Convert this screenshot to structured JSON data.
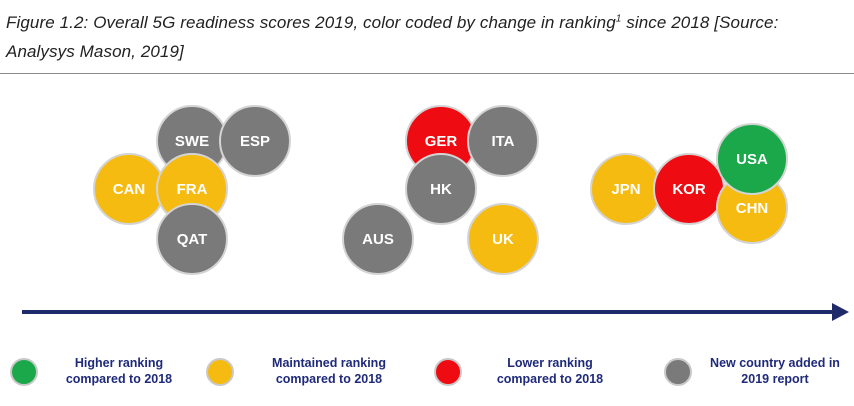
{
  "caption": {
    "line1": "Figure 1.2: Overall 5G readiness scores 2019, color coded by change in ranking",
    "superscript": "1",
    "line1_tail": " since 2018 [Source:",
    "line2": "Analysys Mason, 2019]"
  },
  "colors": {
    "higher": "#1aa84a",
    "maintained": "#f6bb10",
    "lower": "#ee0b12",
    "new": "#7a7a7a",
    "arrow": "#1f2a6b",
    "legend_text": "#1f2a7a"
  },
  "chart_data": {
    "type": "bubble-cluster",
    "axis": "increasing readiness (unlabeled arrow)",
    "clusters": [
      {
        "countries": [
          {
            "label": "SWE",
            "status": "new"
          },
          {
            "label": "ESP",
            "status": "new"
          },
          {
            "label": "CAN",
            "status": "maintained"
          },
          {
            "label": "FRA",
            "status": "maintained"
          },
          {
            "label": "QAT",
            "status": "new"
          }
        ]
      },
      {
        "countries": [
          {
            "label": "GER",
            "status": "lower"
          },
          {
            "label": "ITA",
            "status": "new"
          },
          {
            "label": "HK",
            "status": "new"
          },
          {
            "label": "AUS",
            "status": "new"
          },
          {
            "label": "UK",
            "status": "maintained"
          }
        ]
      },
      {
        "countries": [
          {
            "label": "JPN",
            "status": "maintained"
          },
          {
            "label": "KOR",
            "status": "lower"
          },
          {
            "label": "CHN",
            "status": "maintained"
          },
          {
            "label": "USA",
            "status": "higher"
          }
        ]
      }
    ]
  },
  "legend": [
    {
      "status": "higher",
      "line1": "Higher ranking",
      "line2": "compared to 2018"
    },
    {
      "status": "maintained",
      "line1": "Maintained ranking",
      "line2": "compared to 2018"
    },
    {
      "status": "lower",
      "line1": "Lower ranking",
      "line2": "compared to 2018"
    },
    {
      "status": "new",
      "line1": "New country added in",
      "line2": "2019 report"
    }
  ]
}
